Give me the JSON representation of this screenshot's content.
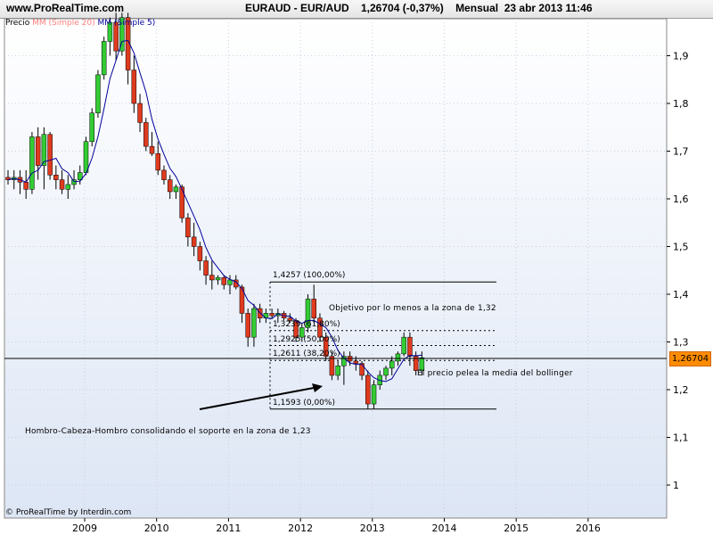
{
  "header": {
    "site": "www.ProRealTime.com",
    "title": "EURAUD - EUR/AUD    1,26704 (-0,37%)    Mensual  23 abr 2013 11:46"
  },
  "legend": {
    "price": "Precio",
    "ma_red": "MM (Simple 20)",
    "ma_blue": "MM (Simple 5)"
  },
  "copyright": "© ProRealTime by Interdin.com",
  "last_price_label": "1,26704",
  "annotations": {
    "target": "Objetivo por lo menos a la zona de 1,32",
    "bollinger": "El precio pelea la media del bollinger",
    "hch": "Hombro-Cabeza-Hombro consolidando el soporte en la zona de 1,23"
  },
  "fib_levels": [
    {
      "label": "1,4257 (100,00%)",
      "price": 1.4257
    },
    {
      "label": "1,3239 (61,80%)",
      "price": 1.3239
    },
    {
      "label": "1,2925 (50,00%)",
      "price": 1.2925
    },
    {
      "label": "1,2611 (38,20%)",
      "price": 1.2611
    },
    {
      "label": "1,1593 (0,00%)",
      "price": 1.1593
    }
  ],
  "colors": {
    "up": "#33cc33",
    "down": "#e03a1e",
    "ma_blue": "#000099",
    "ma_red": "#ff8080",
    "last_price_bg": "#ff8c00"
  },
  "chart_data": {
    "type": "candlestick",
    "title": "EURAUD - EUR/AUD",
    "xlabel": "",
    "ylabel": "",
    "ylim": [
      0.95,
      1.99
    ],
    "x_ticks": [
      "2009",
      "2010",
      "2011",
      "2012",
      "2013",
      "2014",
      "2015",
      "2016"
    ],
    "y_ticks": [
      "1",
      "1,1",
      "1,2",
      "1,3",
      "1,4",
      "1,5",
      "1,6",
      "1,7",
      "1,8",
      "1,9"
    ],
    "last_price": 1.26704,
    "candles": [
      {
        "o": 1.645,
        "h": 1.66,
        "l": 1.63,
        "c": 1.64
      },
      {
        "o": 1.64,
        "h": 1.66,
        "l": 1.62,
        "c": 1.645
      },
      {
        "o": 1.645,
        "h": 1.66,
        "l": 1.61,
        "c": 1.635
      },
      {
        "o": 1.635,
        "h": 1.66,
        "l": 1.6,
        "c": 1.62
      },
      {
        "o": 1.62,
        "h": 1.74,
        "l": 1.61,
        "c": 1.73
      },
      {
        "o": 1.73,
        "h": 1.75,
        "l": 1.64,
        "c": 1.67
      },
      {
        "o": 1.67,
        "h": 1.75,
        "l": 1.62,
        "c": 1.735
      },
      {
        "o": 1.735,
        "h": 1.74,
        "l": 1.64,
        "c": 1.65
      },
      {
        "o": 1.65,
        "h": 1.67,
        "l": 1.62,
        "c": 1.64
      },
      {
        "o": 1.64,
        "h": 1.66,
        "l": 1.61,
        "c": 1.62
      },
      {
        "o": 1.62,
        "h": 1.65,
        "l": 1.6,
        "c": 1.63
      },
      {
        "o": 1.63,
        "h": 1.66,
        "l": 1.62,
        "c": 1.64
      },
      {
        "o": 1.64,
        "h": 1.67,
        "l": 1.63,
        "c": 1.655
      },
      {
        "o": 1.655,
        "h": 1.73,
        "l": 1.65,
        "c": 1.72
      },
      {
        "o": 1.72,
        "h": 1.79,
        "l": 1.71,
        "c": 1.78
      },
      {
        "o": 1.78,
        "h": 1.87,
        "l": 1.77,
        "c": 1.86
      },
      {
        "o": 1.86,
        "h": 1.94,
        "l": 1.85,
        "c": 1.93
      },
      {
        "o": 1.93,
        "h": 1.98,
        "l": 1.9,
        "c": 1.97
      },
      {
        "o": 1.97,
        "h": 1.99,
        "l": 1.89,
        "c": 1.91
      },
      {
        "o": 1.91,
        "h": 1.99,
        "l": 1.9,
        "c": 1.98
      },
      {
        "o": 1.98,
        "h": 1.99,
        "l": 1.84,
        "c": 1.87
      },
      {
        "o": 1.87,
        "h": 1.9,
        "l": 1.78,
        "c": 1.8
      },
      {
        "o": 1.8,
        "h": 1.82,
        "l": 1.74,
        "c": 1.76
      },
      {
        "o": 1.76,
        "h": 1.77,
        "l": 1.7,
        "c": 1.71
      },
      {
        "o": 1.71,
        "h": 1.74,
        "l": 1.69,
        "c": 1.695
      },
      {
        "o": 1.695,
        "h": 1.72,
        "l": 1.65,
        "c": 1.66
      },
      {
        "o": 1.66,
        "h": 1.67,
        "l": 1.63,
        "c": 1.64
      },
      {
        "o": 1.64,
        "h": 1.65,
        "l": 1.6,
        "c": 1.615
      },
      {
        "o": 1.615,
        "h": 1.63,
        "l": 1.6,
        "c": 1.625
      },
      {
        "o": 1.625,
        "h": 1.63,
        "l": 1.55,
        "c": 1.56
      },
      {
        "o": 1.56,
        "h": 1.57,
        "l": 1.5,
        "c": 1.52
      },
      {
        "o": 1.52,
        "h": 1.55,
        "l": 1.48,
        "c": 1.5
      },
      {
        "o": 1.5,
        "h": 1.51,
        "l": 1.45,
        "c": 1.47
      },
      {
        "o": 1.47,
        "h": 1.48,
        "l": 1.42,
        "c": 1.44
      },
      {
        "o": 1.44,
        "h": 1.47,
        "l": 1.41,
        "c": 1.43
      },
      {
        "o": 1.43,
        "h": 1.44,
        "l": 1.42,
        "c": 1.435
      },
      {
        "o": 1.435,
        "h": 1.44,
        "l": 1.41,
        "c": 1.42
      },
      {
        "o": 1.42,
        "h": 1.44,
        "l": 1.4,
        "c": 1.43
      },
      {
        "o": 1.43,
        "h": 1.44,
        "l": 1.41,
        "c": 1.415
      },
      {
        "o": 1.415,
        "h": 1.42,
        "l": 1.34,
        "c": 1.36
      },
      {
        "o": 1.36,
        "h": 1.37,
        "l": 1.29,
        "c": 1.31
      },
      {
        "o": 1.31,
        "h": 1.38,
        "l": 1.29,
        "c": 1.37
      },
      {
        "o": 1.37,
        "h": 1.38,
        "l": 1.34,
        "c": 1.35
      },
      {
        "o": 1.35,
        "h": 1.37,
        "l": 1.34,
        "c": 1.36
      },
      {
        "o": 1.36,
        "h": 1.37,
        "l": 1.35,
        "c": 1.355
      },
      {
        "o": 1.355,
        "h": 1.37,
        "l": 1.34,
        "c": 1.36
      },
      {
        "o": 1.36,
        "h": 1.365,
        "l": 1.345,
        "c": 1.35
      },
      {
        "o": 1.35,
        "h": 1.36,
        "l": 1.34,
        "c": 1.345
      },
      {
        "o": 1.345,
        "h": 1.35,
        "l": 1.3,
        "c": 1.31
      },
      {
        "o": 1.31,
        "h": 1.34,
        "l": 1.3,
        "c": 1.33
      },
      {
        "o": 1.33,
        "h": 1.4,
        "l": 1.32,
        "c": 1.39
      },
      {
        "o": 1.39,
        "h": 1.42,
        "l": 1.34,
        "c": 1.35
      },
      {
        "o": 1.35,
        "h": 1.36,
        "l": 1.3,
        "c": 1.31
      },
      {
        "o": 1.31,
        "h": 1.32,
        "l": 1.26,
        "c": 1.27
      },
      {
        "o": 1.27,
        "h": 1.28,
        "l": 1.22,
        "c": 1.23
      },
      {
        "o": 1.23,
        "h": 1.26,
        "l": 1.22,
        "c": 1.25
      },
      {
        "o": 1.25,
        "h": 1.28,
        "l": 1.21,
        "c": 1.27
      },
      {
        "o": 1.27,
        "h": 1.28,
        "l": 1.25,
        "c": 1.26
      },
      {
        "o": 1.26,
        "h": 1.27,
        "l": 1.24,
        "c": 1.255
      },
      {
        "o": 1.255,
        "h": 1.26,
        "l": 1.22,
        "c": 1.23
      },
      {
        "o": 1.23,
        "h": 1.24,
        "l": 1.16,
        "c": 1.17
      },
      {
        "o": 1.17,
        "h": 1.22,
        "l": 1.16,
        "c": 1.21
      },
      {
        "o": 1.21,
        "h": 1.24,
        "l": 1.2,
        "c": 1.23
      },
      {
        "o": 1.23,
        "h": 1.25,
        "l": 1.22,
        "c": 1.245
      },
      {
        "o": 1.245,
        "h": 1.27,
        "l": 1.23,
        "c": 1.26
      },
      {
        "o": 1.26,
        "h": 1.28,
        "l": 1.25,
        "c": 1.275
      },
      {
        "o": 1.275,
        "h": 1.32,
        "l": 1.27,
        "c": 1.31
      },
      {
        "o": 1.31,
        "h": 1.32,
        "l": 1.25,
        "c": 1.27
      },
      {
        "o": 1.27,
        "h": 1.28,
        "l": 1.23,
        "c": 1.24
      },
      {
        "o": 1.24,
        "h": 1.28,
        "l": 1.23,
        "c": 1.267
      }
    ]
  }
}
